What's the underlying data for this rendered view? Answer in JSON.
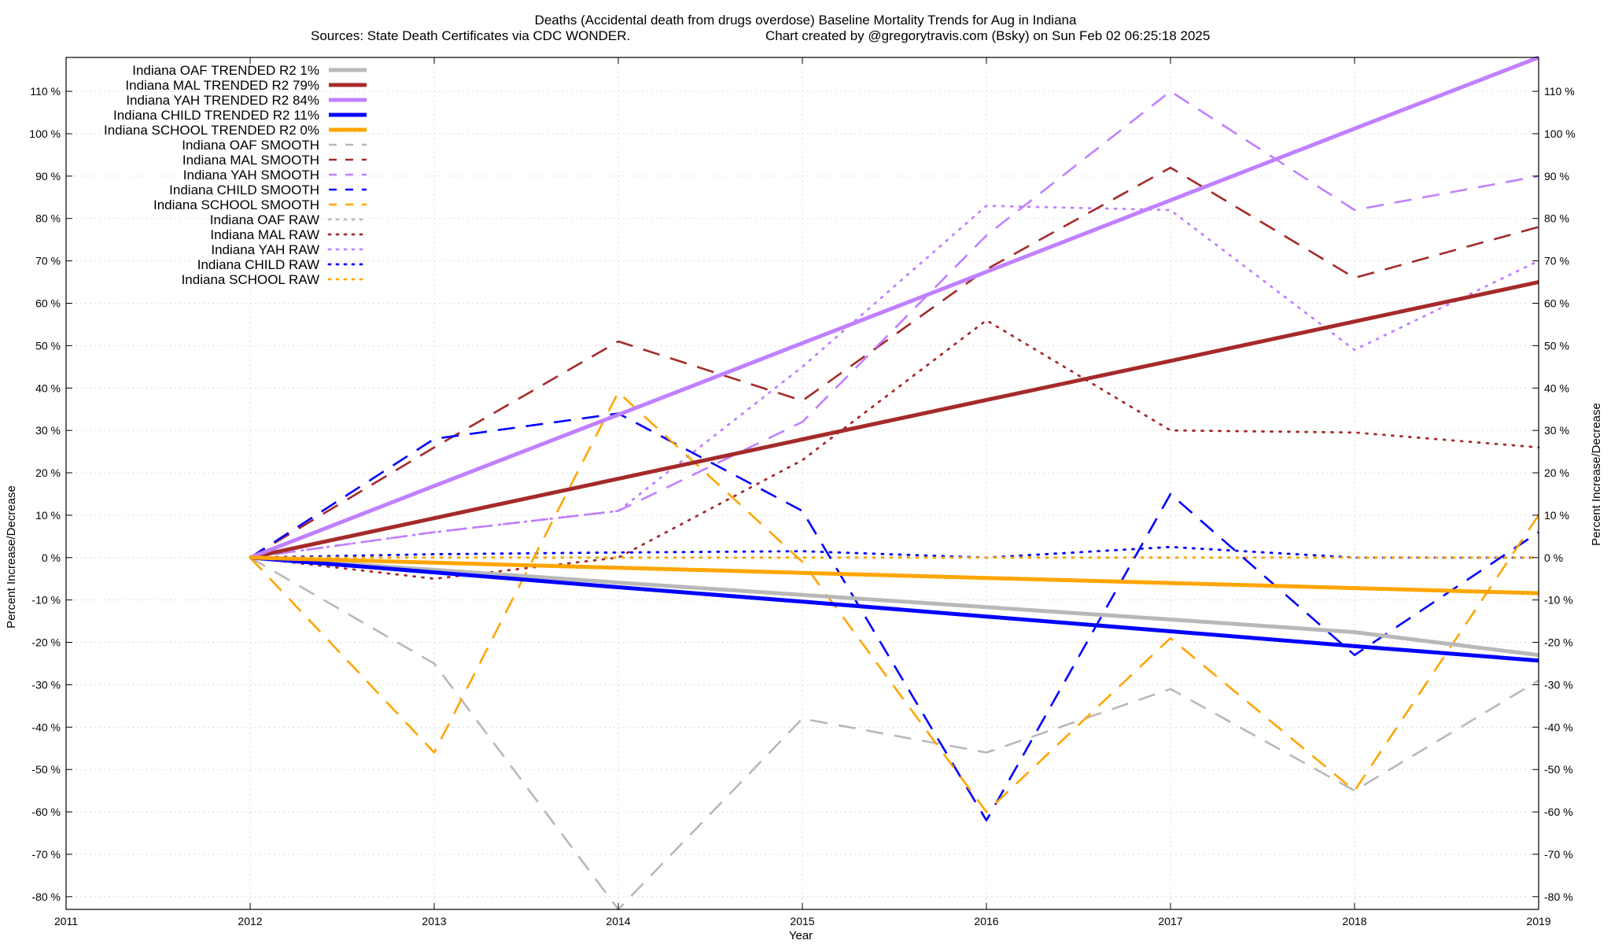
{
  "chart_data": {
    "type": "line",
    "title": "Deaths (Accidental death from drugs overdose)  Baseline Mortality Trends for Aug in Indiana",
    "subtitle_left": "Sources: State Death Certificates via CDC WONDER.",
    "subtitle_right": "Chart created by @gregorytravis.com (Bsky) on Sun Feb 02 06:25:18 2025",
    "xlabel": "Year",
    "ylabel_left": "Percent Increase/Decrease",
    "ylabel_right": "Percent Increase/Decrease",
    "xlim": [
      2011,
      2019
    ],
    "ylim": [
      -83,
      118
    ],
    "x_ticks": [
      2011,
      2012,
      2013,
      2014,
      2015,
      2016,
      2017,
      2018,
      2019
    ],
    "y_ticks_left": [
      "-80 %",
      "-70 %",
      "-60 %",
      "-50 %",
      "-40 %",
      "-30 %",
      "-20 %",
      "-10 %",
      "0 %",
      "10 %",
      "20 %",
      "30 %",
      "40 %",
      "50 %",
      "60 %",
      "70 %",
      "80 %",
      "90 %",
      "100 %",
      "110 %"
    ],
    "y_ticks_right": [
      "-80 %",
      "-70 %",
      "-60 %",
      "-50 %",
      "-40 %",
      "-30 %",
      "-20 %",
      "-10 %",
      "0 %",
      "10 %",
      "20 %",
      "30 %",
      "40 %",
      "50 %",
      "60 %",
      "70 %",
      "80 %",
      "90 %",
      "100 %",
      "110 %"
    ],
    "y_tick_values": [
      -80,
      -70,
      -60,
      -50,
      -40,
      -30,
      -20,
      -10,
      0,
      10,
      20,
      30,
      40,
      50,
      60,
      70,
      80,
      90,
      100,
      110
    ],
    "grid": true,
    "legend_position": "top-left",
    "x": [
      2012,
      2013,
      2014,
      2015,
      2016,
      2017,
      2018,
      2019
    ],
    "series": [
      {
        "name": "Indiana OAF TRENDED R2   1%",
        "style": "solid",
        "color": "#b8b8b8",
        "values": [
          0,
          -2.9,
          -5.9,
          -8.8,
          -11.7,
          -14.6,
          -17.6,
          -23
        ]
      },
      {
        "name": "Indiana MAL TRENDED R2  79%",
        "style": "solid",
        "color": "#a52a2a",
        "values": [
          0,
          9.3,
          18.6,
          27.9,
          37.2,
          46.4,
          55.7,
          65
        ]
      },
      {
        "name": "Indiana YAH TRENDED R2  84%",
        "style": "solid",
        "color": "#c080ff",
        "values": [
          0,
          16.9,
          33.7,
          50.6,
          67.4,
          84.3,
          101.2,
          118
        ]
      },
      {
        "name": "Indiana CHILD TRENDED R2  11%",
        "style": "solid",
        "color": "#0000ff",
        "values": [
          0,
          -3.5,
          -7,
          -10.4,
          -13.9,
          -17.4,
          -20.9,
          -24.3
        ]
      },
      {
        "name": "Indiana SCHOOL TRENDED R2   0%",
        "style": "solid",
        "color": "#ffa500",
        "values": [
          0,
          -1.2,
          -2.4,
          -3.6,
          -4.8,
          -6,
          -7.2,
          -8.4
        ]
      },
      {
        "name": "Indiana OAF SMOOTH",
        "style": "dashed",
        "color": "#b8b8b8",
        "values": [
          0,
          -25,
          -83,
          -38,
          -46,
          -31,
          -55,
          -29
        ]
      },
      {
        "name": "Indiana MAL SMOOTH",
        "style": "dashed",
        "color": "#a52a2a",
        "values": [
          0,
          26,
          51,
          37,
          68,
          92,
          66,
          78
        ]
      },
      {
        "name": "Indiana YAH SMOOTH",
        "style": "dashed",
        "color": "#c080ff",
        "values": [
          0,
          6,
          11,
          32,
          76,
          110,
          82,
          90
        ]
      },
      {
        "name": "Indiana CHILD SMOOTH",
        "style": "dashed",
        "color": "#0000ff",
        "values": [
          0,
          28,
          34,
          11,
          -62,
          15,
          -23,
          6
        ]
      },
      {
        "name": "Indiana SCHOOL SMOOTH",
        "style": "dashed",
        "color": "#ffa500",
        "values": [
          0,
          -46,
          39,
          -1,
          -60,
          -19,
          -55,
          10
        ]
      },
      {
        "name": "Indiana OAF RAW",
        "style": "dotted",
        "color": "#b8b8b8",
        "values": [
          0,
          0,
          0,
          0,
          0,
          0,
          0,
          0
        ]
      },
      {
        "name": "Indiana MAL RAW",
        "style": "dotted",
        "color": "#a52a2a",
        "values": [
          0,
          -5,
          0,
          23,
          56,
          30,
          29.5,
          26
        ]
      },
      {
        "name": "Indiana YAH RAW",
        "style": "dotted",
        "color": "#c080ff",
        "values": [
          0,
          6,
          11,
          45,
          83,
          82,
          49,
          70
        ]
      },
      {
        "name": "Indiana CHILD RAW",
        "style": "dotted",
        "color": "#0000ff",
        "values": [
          0,
          0.8,
          1.2,
          1.5,
          0,
          2.5,
          0,
          0
        ]
      },
      {
        "name": "Indiana SCHOOL RAW",
        "style": "dotted",
        "color": "#ffa500",
        "values": [
          0,
          0,
          0,
          0,
          0,
          0,
          0,
          0
        ]
      }
    ]
  }
}
